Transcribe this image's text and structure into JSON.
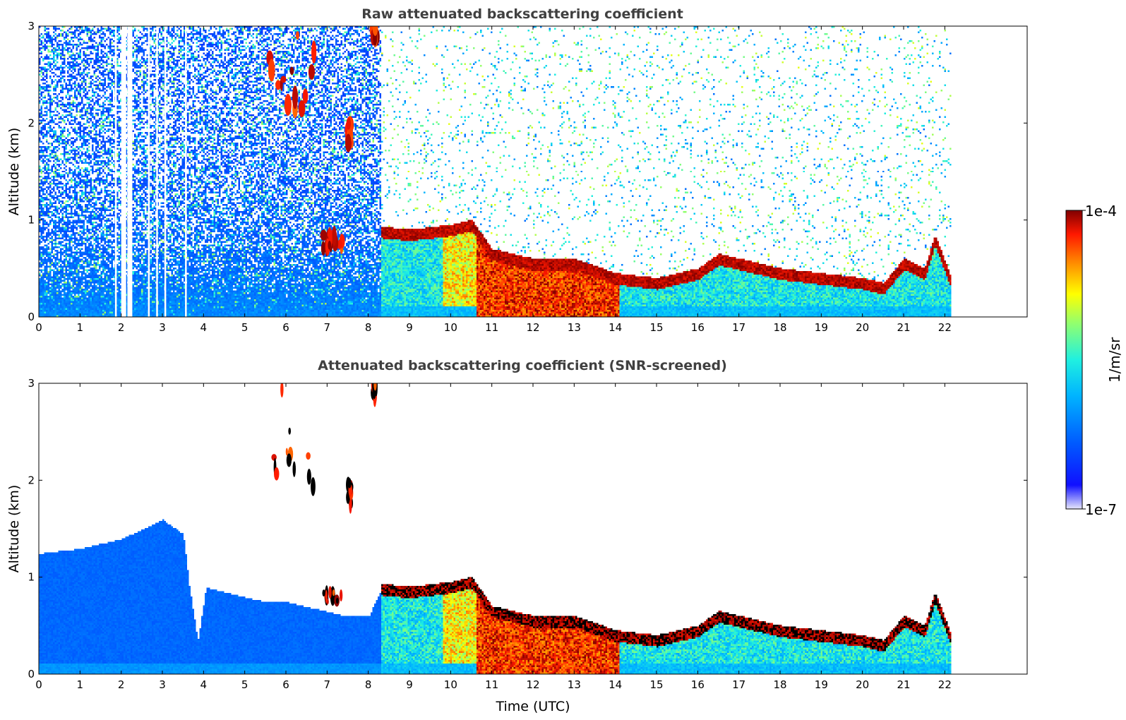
{
  "chart_data": [
    {
      "type": "heatmap",
      "title": "Raw attenuated backscattering coefficient",
      "xlabel": "",
      "ylabel": "Altitude (km)",
      "xlim": [
        0,
        24
      ],
      "ylim": [
        0,
        3
      ],
      "x_ticks": [
        "0",
        "1",
        "2",
        "3",
        "4",
        "5",
        "6",
        "7",
        "8",
        "9",
        "10",
        "11",
        "12",
        "13",
        "14",
        "15",
        "16",
        "17",
        "18",
        "19",
        "20",
        "21",
        "22"
      ],
      "y_ticks": [
        "0",
        "1",
        "2",
        "3"
      ],
      "data_end_time": 22.15,
      "missing_time_gaps": [
        1.85,
        2.0,
        2.05,
        2.15,
        2.65,
        2.85,
        3.05,
        3.55
      ],
      "layers": [
        {
          "kind": "elevated_cloud",
          "time": [
            5.6,
            6.8
          ],
          "altitude": [
            1.9,
            3.0
          ]
        },
        {
          "kind": "cloud_patch",
          "time": [
            6.9,
            7.4
          ],
          "altitude": [
            0.7,
            0.85
          ]
        },
        {
          "kind": "cloud_streak",
          "time": [
            7.5,
            7.6
          ],
          "altitude": [
            1.75,
            2.0
          ]
        },
        {
          "kind": "cloud_top_layer",
          "time": [
            8.1,
            8.2
          ],
          "altitude": [
            2.85,
            3.0
          ]
        }
      ],
      "boundary_layer_top_km": {
        "time": [
          8.3,
          9.0,
          10.0,
          10.5,
          11.0,
          12.0,
          13.0,
          14.0,
          15.0,
          16.0,
          16.5,
          17.0,
          18.0,
          19.0,
          20.0,
          20.5,
          21.0,
          21.5,
          21.75,
          22.15
        ],
        "height": [
          0.88,
          0.85,
          0.9,
          0.95,
          0.65,
          0.55,
          0.55,
          0.4,
          0.35,
          0.45,
          0.6,
          0.55,
          0.45,
          0.4,
          0.35,
          0.3,
          0.55,
          0.45,
          0.8,
          0.35
        ]
      }
    },
    {
      "type": "heatmap",
      "title": "Attenuated backscattering coefficient (SNR-screened)",
      "xlabel": "Time (UTC)",
      "ylabel": "Altitude (km)",
      "xlim": [
        0,
        24
      ],
      "ylim": [
        0,
        3
      ],
      "x_ticks": [
        "0",
        "1",
        "2",
        "3",
        "4",
        "5",
        "6",
        "7",
        "8",
        "9",
        "10",
        "11",
        "12",
        "13",
        "14",
        "15",
        "16",
        "17",
        "18",
        "19",
        "20",
        "21",
        "22"
      ],
      "y_ticks": [
        "0",
        "1",
        "2",
        "3"
      ],
      "data_end_time": 22.15,
      "screened_aerosol_top_km": {
        "time": [
          0,
          1,
          2,
          2.5,
          3,
          3.5,
          3.65,
          3.85,
          4.05,
          4.5,
          5,
          5.5,
          6,
          6.5,
          7,
          7.5,
          8,
          8.3
        ],
        "height": [
          1.25,
          1.3,
          1.4,
          1.5,
          1.6,
          1.45,
          0.9,
          0.35,
          0.9,
          0.85,
          0.8,
          0.75,
          0.75,
          0.7,
          0.65,
          0.6,
          0.6,
          0.88
        ]
      }
    }
  ],
  "colorbar": {
    "label": "1/m/sr",
    "max_label": "1e-4",
    "min_label": "1e-7",
    "scale": "log",
    "colormap": "jet",
    "colors": [
      "#e6e6fa",
      "#0000ff",
      "#00a0ff",
      "#00ffff",
      "#80ff80",
      "#ffff00",
      "#ff8000",
      "#ff0000",
      "#800000"
    ]
  }
}
